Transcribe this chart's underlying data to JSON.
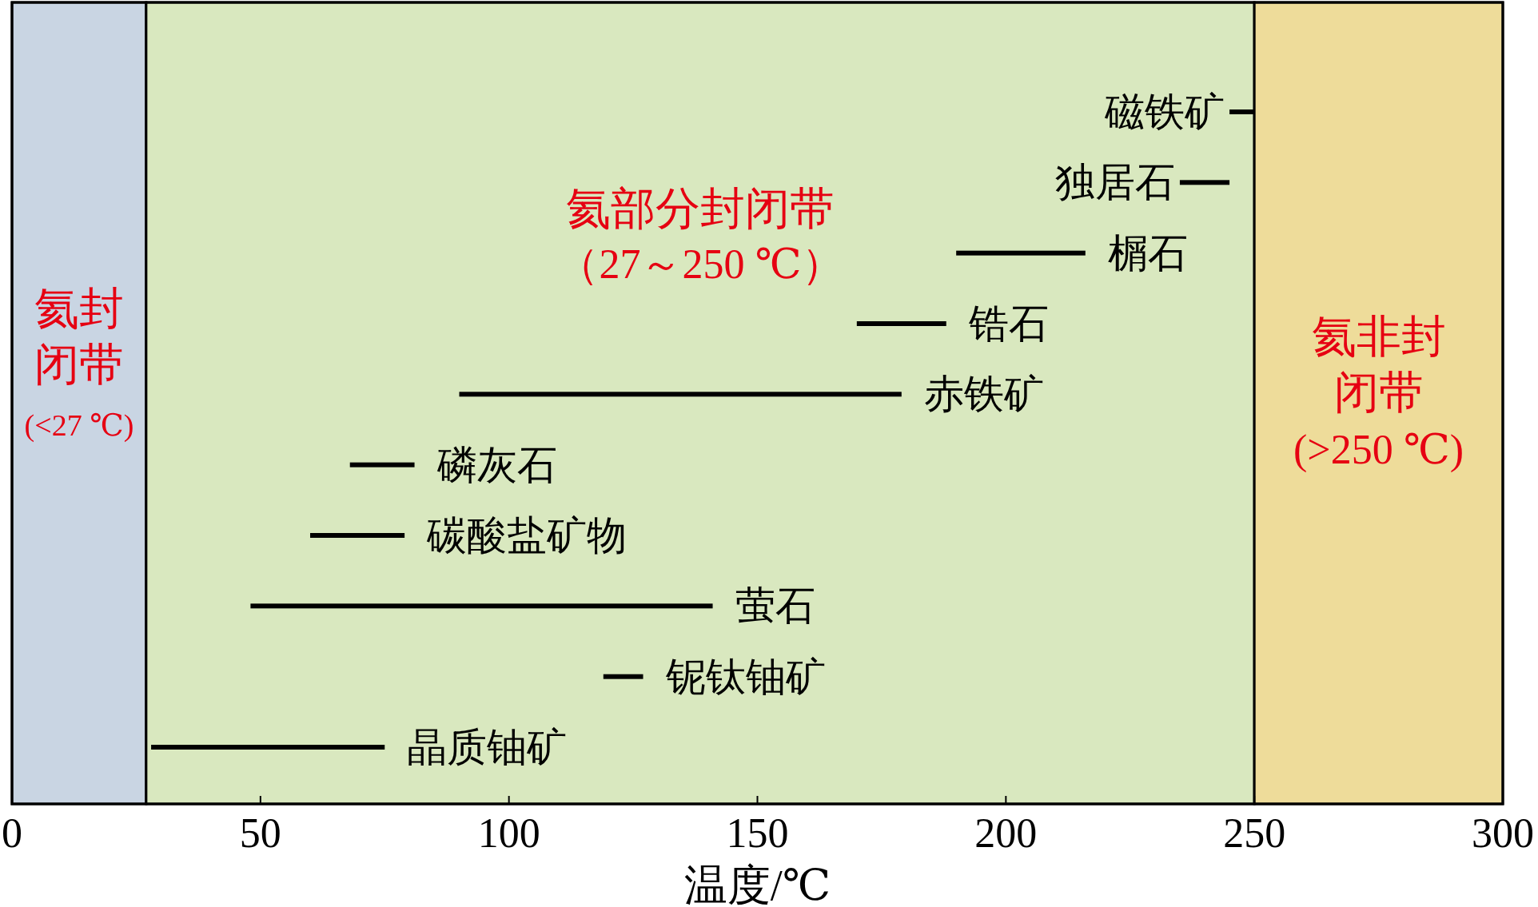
{
  "chart_data": {
    "type": "bar",
    "orientation": "horizontal",
    "xlabel": "温度/℃",
    "categories": [
      "磁铁矿",
      "独居石",
      "榍石",
      "锆石",
      "赤铁矿",
      "磷灰石",
      "碳酸盐矿物",
      "萤石",
      "铌钛铀矿",
      "晶质铀矿"
    ],
    "base": [
      245,
      235,
      190,
      170,
      90,
      68,
      60,
      48,
      119,
      28
    ],
    "values": [
      5,
      10,
      26,
      18,
      89,
      13,
      19,
      93,
      8,
      47
    ],
    "color": "#000000",
    "xlim": [
      0,
      300
    ],
    "xticks": [
      0,
      50,
      100,
      150,
      200,
      250,
      300
    ],
    "tick_labels": "x",
    "bands": [
      {
        "axis": "x",
        "from": 0,
        "to": 27,
        "label": [
          "氦封",
          "闭带",
          "(<27 ℃)"
        ],
        "color": "#c9d5e3"
      },
      {
        "axis": "x",
        "from": 27,
        "to": 250,
        "label": [
          "氦部分封闭带",
          "（27～250 ℃）"
        ],
        "color": "#d9e8bf"
      },
      {
        "axis": "x",
        "from": 250,
        "to": 300,
        "label": [
          "氦非封",
          "闭带",
          "(>250 ℃)"
        ],
        "color": "#eedc9a"
      }
    ]
  }
}
